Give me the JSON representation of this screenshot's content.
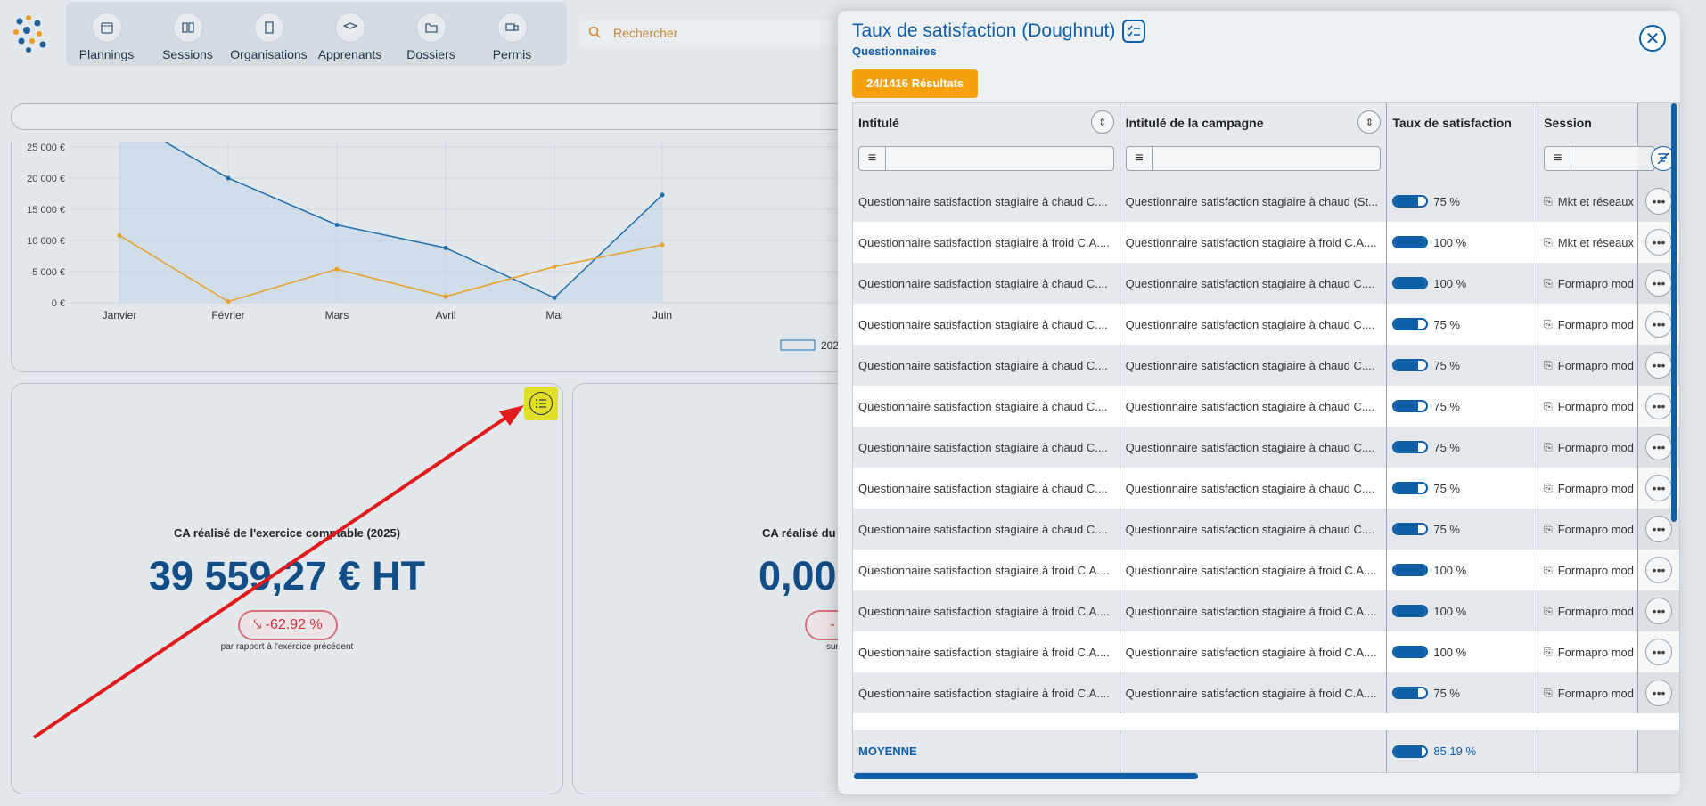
{
  "nav": {
    "items": [
      {
        "label": "Plannings",
        "icon": "calendar-icon"
      },
      {
        "label": "Sessions",
        "icon": "book-icon"
      },
      {
        "label": "Organisations",
        "icon": "building-icon"
      },
      {
        "label": "Apprenants",
        "icon": "graduation-cap-icon"
      },
      {
        "label": "Dossiers",
        "icon": "folder-icon"
      },
      {
        "label": "Permis",
        "icon": "truck-icon"
      }
    ]
  },
  "search": {
    "placeholder": "Rechercher"
  },
  "chart_data": {
    "type": "line",
    "categories": [
      "Janvier",
      "Février",
      "Mars",
      "Avril",
      "Mai",
      "Juin"
    ],
    "yticks": [
      "0 €",
      "5 000 €",
      "10 000 €",
      "15 000 €",
      "20 000 €",
      "25 000 €"
    ],
    "ylim": [
      0,
      25000
    ],
    "legend_visible_text": "202",
    "series": [
      {
        "color": "#1f6fb0",
        "values": [
          30000,
          20000,
          12500,
          8800,
          800,
          17300
        ]
      },
      {
        "color": "#e8a028",
        "values": [
          10800,
          200,
          5400,
          1000,
          5800,
          9300
        ]
      }
    ],
    "grid": true
  },
  "kpi1": {
    "title": "CA réalisé de l'exercice comptable (2025)",
    "value": "39 559,27 € HT",
    "delta": "-62.92 %",
    "subtitle": "par rapport à l'exercice précédent"
  },
  "kpi2": {
    "title": "CA réalisé du m",
    "value": "0,00",
    "delta": "-",
    "subtitle": "sur"
  },
  "panel": {
    "title": "Taux de satisfaction (Doughnut)",
    "subtitle": "Questionnaires",
    "results": "24/1416 Résultats",
    "columns": [
      "Intitulé",
      "Intitulé de la campagne",
      "Taux de satisfaction",
      "Session"
    ],
    "rows": [
      {
        "intitule": "Questionnaire satisfaction stagiaire à chaud C....",
        "campagne": "Questionnaire satisfaction stagiaire à chaud (St...",
        "taux": "75 %",
        "taux_value": 75,
        "session": "Mkt et réseaux"
      },
      {
        "intitule": "Questionnaire satisfaction stagiaire à froid C.A....",
        "campagne": "Questionnaire satisfaction stagiaire à froid C.A....",
        "taux": "100 %",
        "taux_value": 100,
        "session": "Mkt et réseaux"
      },
      {
        "intitule": "Questionnaire satisfaction stagiaire à chaud C....",
        "campagne": "Questionnaire satisfaction stagiaire à chaud C....",
        "taux": "100 %",
        "taux_value": 100,
        "session": "Formapro mod"
      },
      {
        "intitule": "Questionnaire satisfaction stagiaire à chaud C....",
        "campagne": "Questionnaire satisfaction stagiaire à chaud C....",
        "taux": "75 %",
        "taux_value": 75,
        "session": "Formapro mod"
      },
      {
        "intitule": "Questionnaire satisfaction stagiaire à chaud C....",
        "campagne": "Questionnaire satisfaction stagiaire à chaud C....",
        "taux": "75 %",
        "taux_value": 75,
        "session": "Formapro mod"
      },
      {
        "intitule": "Questionnaire satisfaction stagiaire à chaud C....",
        "campagne": "Questionnaire satisfaction stagiaire à chaud C....",
        "taux": "75 %",
        "taux_value": 75,
        "session": "Formapro mod"
      },
      {
        "intitule": "Questionnaire satisfaction stagiaire à chaud C....",
        "campagne": "Questionnaire satisfaction stagiaire à chaud C....",
        "taux": "75 %",
        "taux_value": 75,
        "session": "Formapro mod"
      },
      {
        "intitule": "Questionnaire satisfaction stagiaire à chaud C....",
        "campagne": "Questionnaire satisfaction stagiaire à chaud C....",
        "taux": "75 %",
        "taux_value": 75,
        "session": "Formapro mod"
      },
      {
        "intitule": "Questionnaire satisfaction stagiaire à chaud C....",
        "campagne": "Questionnaire satisfaction stagiaire à chaud C....",
        "taux": "75 %",
        "taux_value": 75,
        "session": "Formapro mod"
      },
      {
        "intitule": "Questionnaire satisfaction stagiaire à froid C.A....",
        "campagne": "Questionnaire satisfaction stagiaire à froid C.A....",
        "taux": "100 %",
        "taux_value": 100,
        "session": "Formapro mod"
      },
      {
        "intitule": "Questionnaire satisfaction stagiaire à froid C.A....",
        "campagne": "Questionnaire satisfaction stagiaire à froid C.A....",
        "taux": "100 %",
        "taux_value": 100,
        "session": "Formapro mod"
      },
      {
        "intitule": "Questionnaire satisfaction stagiaire à froid C.A....",
        "campagne": "Questionnaire satisfaction stagiaire à froid C.A....",
        "taux": "100 %",
        "taux_value": 100,
        "session": "Formapro mod"
      },
      {
        "intitule": "Questionnaire satisfaction stagiaire à froid C.A....",
        "campagne": "Questionnaire satisfaction stagiaire à froid C.A....",
        "taux": "75 %",
        "taux_value": 75,
        "session": "Formapro mod"
      }
    ],
    "footer": {
      "label": "MOYENNE",
      "value": "85.19 %",
      "value_num": 85.19
    }
  },
  "colors": {
    "accent": "#0f5ea8",
    "badge": "#f5a00c",
    "arrow": "#e11b1b",
    "highlight": "#e0df2a"
  }
}
